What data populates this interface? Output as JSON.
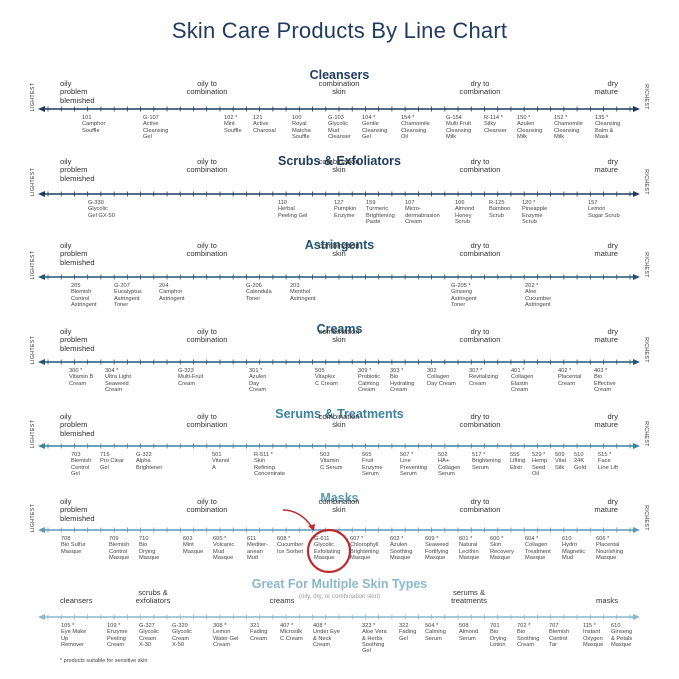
{
  "title": "Skin Care Products By Line Chart",
  "ends": {
    "left": "LIGHTEST",
    "right": "RICHEST"
  },
  "footnote": "* products suitable for sensitive skin",
  "highlight_arrow_color": "#c0282d",
  "sections": [
    {
      "title": "Cleansers",
      "color": "#1f3b5f",
      "labels": [
        {
          "text": "oily\nproblem\nblemished"
        },
        {
          "text": "oily to\ncombination"
        },
        {
          "text": "combination\nskin"
        },
        {
          "text": "dry to\ncombination"
        },
        {
          "text": "dry\nmature"
        }
      ],
      "products": [
        {
          "text": "101\nCamphor\nSouffle"
        },
        {
          "text": "G-107\nActive\nCleansing\nGel"
        },
        {
          "text": "102 *\nMint\nSouffle"
        },
        {
          "text": "121\nActive\nCharcoal"
        },
        {
          "text": "100\nRoyal\nMatcha\nSouffle"
        },
        {
          "text": "G-103\nGlycolic\nMud\nCleanser"
        },
        {
          "text": "104 *\nGentle\nCleansing\nGel"
        },
        {
          "text": "154 *\nChamomile\nCleansing\nOil"
        },
        {
          "text": "G-154\nMulti Fruit\nCleansing\nMilk"
        },
        {
          "text": "R-114 *\nSilky\nCleanser"
        },
        {
          "text": "150 *\nAzulen\nCleansing\nMilk"
        },
        {
          "text": "152 *\nChamomile\nCleansing\nMilk"
        },
        {
          "text": "135 *\nCleansing\nBalm &\nMask"
        }
      ]
    },
    {
      "title": "Scrubs & Exfoliators",
      "color": "#1f3b5f",
      "labels": [
        {
          "text": "oily\nproblem\nblemished"
        },
        {
          "text": "oily to\ncombination"
        },
        {
          "text": "combination\nskin"
        },
        {
          "text": "dry to\ncombination"
        },
        {
          "text": "dry\nmature"
        }
      ],
      "products": [
        {
          "text": "G-330\nGlycolic\nGel GX-50"
        },
        {
          "text": "110\nHerbal\nPeeling Gel"
        },
        {
          "text": "127\nPumpkin\nEnzyme"
        },
        {
          "text": "159\nTurmeric\nBrightening\nPaste"
        },
        {
          "text": "107\nMicro-\ndermabrasion\nCream"
        },
        {
          "text": "106\nAlmond\nHoney\nScrub"
        },
        {
          "text": "R-125\nBamboo\nScrub"
        },
        {
          "text": "120 *\nPineapple\nEnzyme\nScrub"
        },
        {
          "text": "157\nLemon\nSugar Scrub"
        }
      ]
    },
    {
      "title": "Astringents",
      "color": "#235577",
      "labels": [
        {
          "text": "oily\nproblem\nblemished"
        },
        {
          "text": "oily to\ncombination"
        },
        {
          "text": "combination\nskin"
        },
        {
          "text": "dry to\ncombination"
        },
        {
          "text": "dry\nmature"
        }
      ],
      "products": [
        {
          "text": "205\nBlemish\nControl\nAstringent"
        },
        {
          "text": "G-207\nEucalyptus\nAstringent\nToner"
        },
        {
          "text": "204\nCamphor\nAstringent"
        },
        {
          "text": "G-206\nCalendula\nToner"
        },
        {
          "text": "203\nMenthol\nAstringent"
        },
        {
          "text": "G-205 *\nGinseng\nAstringent\nToner"
        },
        {
          "text": "202 *\nAloe\nCucumber\nAstringent"
        }
      ]
    },
    {
      "title": "Creams",
      "color": "#235577",
      "labels": [
        {
          "text": "oily\nproblem\nblemished"
        },
        {
          "text": "oily to\ncombination"
        },
        {
          "text": "combination\nskin"
        },
        {
          "text": "dry to\ncombination"
        },
        {
          "text": "dry\nmature"
        }
      ],
      "products": [
        {
          "text": "300 *\nVitamin B\nCream"
        },
        {
          "text": "304 *\nUltra Light\nSeaweed\nCream"
        },
        {
          "text": "G-323\nMulti-Fruit\nCream"
        },
        {
          "text": "301 *\nAzulen\nDay\nCream"
        },
        {
          "text": "505\nVitaplex\nC Cream"
        },
        {
          "text": "309 *\nProbiotic\nCalming\nCream"
        },
        {
          "text": "303 *\nBio\nHydrating\nCream"
        },
        {
          "text": "302\nCollagen\nDay Cream"
        },
        {
          "text": "307 *\nRevitalizing\nCream"
        },
        {
          "text": "401 *\nCollagen\nElastin\nCream"
        },
        {
          "text": "402 *\nPlacental\nCream"
        },
        {
          "text": "403 *\nBio\nEffective\nCream"
        }
      ]
    },
    {
      "title": "Serums & Treatments",
      "color": "#3d82a1",
      "labels": [
        {
          "text": "oily\nproblem\nblemished"
        },
        {
          "text": "oily to\ncombination"
        },
        {
          "text": "combination\nskin"
        },
        {
          "text": "dry to\ncombination"
        },
        {
          "text": "dry\nmature"
        }
      ],
      "products": [
        {
          "text": "703\nBlemish\nControl\nGel"
        },
        {
          "text": "715\nPro Clear\nGel"
        },
        {
          "text": "G-322\nAlpha\nBrightener"
        },
        {
          "text": "501\nVitanol\nA"
        },
        {
          "text": "R-511 *\nSkin\nRefining\nConcentrate"
        },
        {
          "text": "503\nVitamin\nC Serum"
        },
        {
          "text": "565\nFruit\nEnzyme\nSerum"
        },
        {
          "text": "507 *\nLine\nPreventing\nSerum"
        },
        {
          "text": "502\nHA+\nCollagen\nSerum"
        },
        {
          "text": "517 *\nBrightening\nSerum"
        },
        {
          "text": "555\nLifting\nElixir"
        },
        {
          "text": "529 *\nHemp\nSeed\nOil"
        },
        {
          "text": "509\nVital\nSilk"
        },
        {
          "text": "510\n24K\nGold"
        },
        {
          "text": "515 *\nFace\nLine Lift"
        }
      ]
    },
    {
      "title": "Masks",
      "color": "#5e9ab5",
      "labels": [
        {
          "text": "oily\nproblem\nblemished"
        },
        {
          "text": "oily to\ncombination"
        },
        {
          "text": "combination\nskin"
        },
        {
          "text": "dry to\ncombination"
        },
        {
          "text": "dry\nmature"
        }
      ],
      "products": [
        {
          "text": "708\nBio Sulfur\nMasque"
        },
        {
          "text": "709\nBlemish\nControl\nMasque"
        },
        {
          "text": "710\nBio\nDrying\nMasque"
        },
        {
          "text": "603\nMint\nMasque"
        },
        {
          "text": "605 *\nVolcanic\nMud\nMasque"
        },
        {
          "text": "611\nMediter-\nanean\nMud"
        },
        {
          "text": "608 *\nCucumber\nIce Sorbet"
        },
        {
          "text": "G-611\nGlycolic\nExfoliating\nMasque"
        },
        {
          "text": "607 *\nChlorophyll\nBrightening\nMasque"
        },
        {
          "text": "602 *\nAzulen\nSoothing\nMasque"
        },
        {
          "text": "609 *\nSeaweed\nFortifying\nMasque"
        },
        {
          "text": "601 *\nNatural\nLecithin\nMasque"
        },
        {
          "text": "600 *\nSkin\nRecovery\nMasque"
        },
        {
          "text": "604 *\nCollagen\nTreatment\nMasque"
        },
        {
          "text": "610\nHydro\nMagnetic\nMud"
        },
        {
          "text": "606 *\nPlacental\nNourishing\nMasque"
        }
      ]
    },
    {
      "title": "Great For Multiple Skin Types",
      "subtitle": "(oily, dry, or combination skin)",
      "color": "#8ab8ce",
      "labels": [
        {
          "text": "cleansers"
        },
        {
          "text": "scrubs &\nexfoliators"
        },
        {
          "text": "creams"
        },
        {
          "text": "serums &\ntreatments"
        },
        {
          "text": "masks"
        }
      ],
      "products": [
        {
          "text": "105 *\nEye Make\nUp\nRemover"
        },
        {
          "text": "109 *\nEnzyme\nPeeling\nCream"
        },
        {
          "text": "G-327\nGlycolic\nCream\nX-30"
        },
        {
          "text": "G-329\nGlycolic\nCream\nX-50"
        },
        {
          "text": "308 *\nLemon\nWater Gel\nCream"
        },
        {
          "text": "321\nFading\nCream"
        },
        {
          "text": "407 *\nMicrosilk\nC Cream"
        },
        {
          "text": "408 *\nUnder Eye\n& Neck\nCream"
        },
        {
          "text": "323 *\nAloe Vera\n& Herbs\nSoothing\nGel"
        },
        {
          "text": "322\nFading\nGel"
        },
        {
          "text": "504 *\nCalming\nSerum"
        },
        {
          "text": "508\nAlmond\nSerum"
        },
        {
          "text": "701\nBio\nDrying\nLotion"
        },
        {
          "text": "702 *\nBio\nSoothing\nCream"
        },
        {
          "text": "707\nBlemish\nControl\nTar"
        },
        {
          "text": "115 *\nInstant\nOxygen\nMasque"
        },
        {
          "text": "610\nGinseng\n& Petals\nMasque"
        }
      ]
    }
  ]
}
